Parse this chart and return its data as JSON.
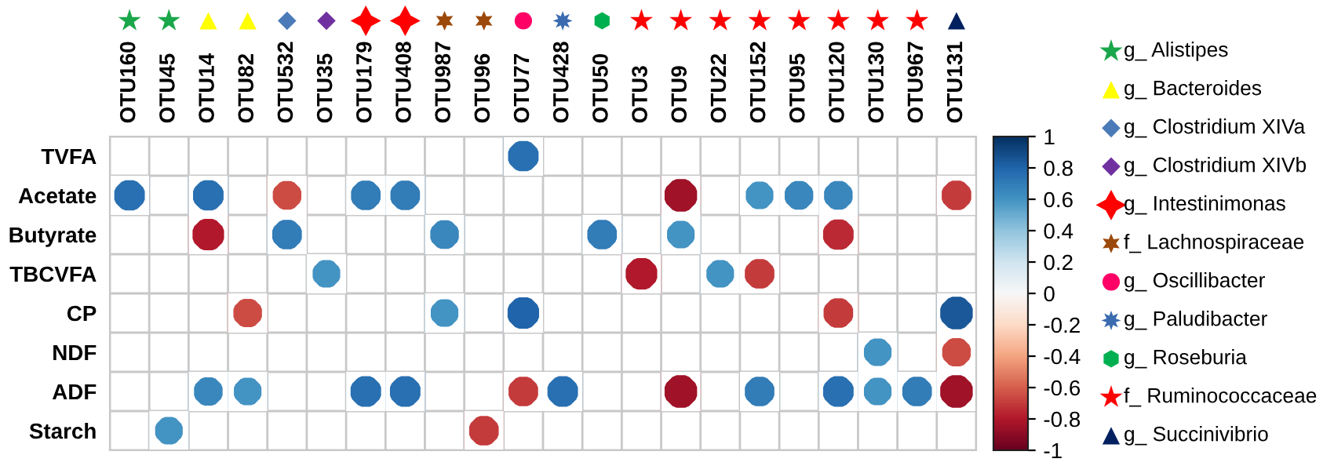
{
  "chart_data": {
    "type": "heatmap",
    "categories": [
      "OTU160",
      "OTU45",
      "OTU14",
      "OTU82",
      "OTU532",
      "OTU35",
      "OTU179",
      "OTU408",
      "OTU987",
      "OTU96",
      "OTU77",
      "OTU428",
      "OTU50",
      "OTU3",
      "OTU9",
      "OTU22",
      "OTU152",
      "OTU95",
      "OTU120",
      "OTU130",
      "OTU967",
      "OTU131"
    ],
    "y_categories": [
      "TVFA",
      "Acetate",
      "Butyrate",
      "TBCVFA",
      "CP",
      "NDF",
      "ADF",
      "Starch"
    ],
    "cells": [
      [
        null,
        null,
        null,
        null,
        null,
        null,
        null,
        null,
        null,
        null,
        0.75,
        null,
        null,
        null,
        null,
        null,
        null,
        null,
        null,
        null,
        null,
        null
      ],
      [
        0.75,
        null,
        0.75,
        null,
        -0.65,
        null,
        0.7,
        0.7,
        null,
        null,
        null,
        null,
        null,
        null,
        -0.85,
        null,
        0.6,
        0.65,
        0.65,
        null,
        null,
        -0.7
      ],
      [
        null,
        null,
        -0.8,
        null,
        0.7,
        null,
        null,
        null,
        0.65,
        null,
        null,
        null,
        0.7,
        null,
        0.6,
        null,
        null,
        null,
        -0.75,
        null,
        null,
        null
      ],
      [
        null,
        null,
        null,
        null,
        null,
        0.6,
        null,
        null,
        null,
        null,
        null,
        null,
        null,
        -0.8,
        null,
        0.6,
        -0.7,
        null,
        null,
        null,
        null,
        null
      ],
      [
        null,
        null,
        null,
        -0.65,
        null,
        null,
        null,
        null,
        0.6,
        null,
        0.8,
        null,
        null,
        null,
        null,
        null,
        null,
        null,
        -0.7,
        null,
        null,
        0.85
      ],
      [
        null,
        null,
        null,
        null,
        null,
        null,
        null,
        null,
        null,
        null,
        null,
        null,
        null,
        null,
        null,
        null,
        null,
        null,
        null,
        0.6,
        null,
        -0.65
      ],
      [
        null,
        null,
        0.65,
        0.6,
        null,
        null,
        0.75,
        0.75,
        null,
        null,
        -0.7,
        0.75,
        null,
        null,
        -0.85,
        null,
        0.7,
        null,
        0.75,
        0.6,
        0.7,
        -0.85
      ],
      [
        null,
        0.6,
        null,
        null,
        null,
        null,
        null,
        null,
        null,
        -0.7,
        null,
        null,
        null,
        null,
        null,
        null,
        null,
        null,
        null,
        null,
        null,
        null
      ]
    ],
    "clim": [
      -1,
      1
    ],
    "cticks": [
      -1,
      {
        "value": -0.8,
        "label": "-0.8"
      },
      {
        "value": -0.6,
        "label": "-0.6"
      },
      {
        "value": -0.4,
        "label": "-0.4"
      },
      {
        "value": -0.2,
        "label": "-0.2"
      },
      0,
      0.2,
      0.4,
      0.6,
      0.8,
      1
    ],
    "grid": true,
    "annotations": [
      "g_ Alistipes",
      "g_ Bacteroides",
      "g_ Clostridium XIVa",
      "g_ Clostridium XIVb",
      "g_ Intestinimonas",
      "f_ Lachnospiraceae",
      "g_ Oscillibacter",
      "g_ Paludibacter",
      "g_ Roseburia",
      "f_ Ruminococcaceae",
      "g_ Succinivibrio"
    ]
  }
}
